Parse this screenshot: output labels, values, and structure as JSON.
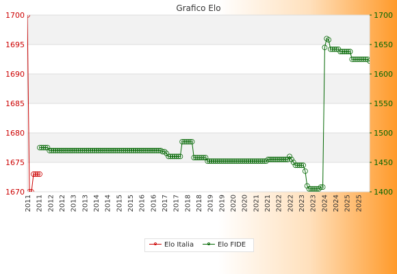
{
  "chart_data": {
    "type": "line",
    "title": "Grafico Elo",
    "y_left": {
      "ylim": [
        1670,
        1700
      ],
      "ticks": [
        1670,
        1675,
        1680,
        1685,
        1690,
        1695,
        1700
      ],
      "color": "#cc0000"
    },
    "y_right": {
      "ylim": [
        1400,
        1700
      ],
      "ticks": [
        1400,
        1450,
        1500,
        1550,
        1600,
        1650,
        1700
      ],
      "color": "#006600"
    },
    "x_tick_labels": [
      "2011",
      "2011",
      "2012",
      "2012",
      "2013",
      "2013",
      "2014",
      "2014",
      "2015",
      "2015",
      "2016",
      "2016",
      "2017",
      "2017",
      "2018",
      "2018",
      "2019",
      "2019",
      "2020",
      "2020",
      "2021",
      "2021",
      "2022",
      "2022",
      "2023",
      "2023",
      "2024",
      "2024",
      "2025",
      "2025"
    ],
    "legend": {
      "placement": "bottom-center"
    },
    "grid": "horizontal-bands",
    "series": [
      {
        "name": "Elo Italia",
        "axis": "left",
        "color": "#cc0000",
        "values": [
          1700,
          1670,
          1670,
          1673,
          1673,
          1673,
          1673
        ]
      },
      {
        "name": "Elo FIDE",
        "axis": "right",
        "color": "#006600",
        "values": [
          1475,
          1475,
          1475,
          1475,
          1475,
          1470,
          1470,
          1470,
          1470,
          1470,
          1470,
          1470,
          1470,
          1470,
          1470,
          1470,
          1470,
          1470,
          1470,
          1470,
          1470,
          1470,
          1470,
          1470,
          1470,
          1470,
          1470,
          1470,
          1470,
          1470,
          1470,
          1470,
          1470,
          1470,
          1470,
          1470,
          1470,
          1470,
          1470,
          1470,
          1470,
          1470,
          1470,
          1470,
          1470,
          1470,
          1470,
          1470,
          1470,
          1470,
          1470,
          1470,
          1470,
          1470,
          1470,
          1470,
          1470,
          1470,
          1470,
          1470,
          1470,
          1470,
          1470,
          1468,
          1468,
          1465,
          1460,
          1460,
          1460,
          1460,
          1460,
          1460,
          1460,
          1485,
          1485,
          1485,
          1485,
          1485,
          1485,
          1458,
          1458,
          1458,
          1458,
          1458,
          1458,
          1458,
          1452,
          1452,
          1452,
          1452,
          1452,
          1452,
          1452,
          1452,
          1452,
          1452,
          1452,
          1452,
          1452,
          1452,
          1452,
          1452,
          1452,
          1452,
          1452,
          1452,
          1452,
          1452,
          1452,
          1452,
          1452,
          1452,
          1452,
          1452,
          1452,
          1452,
          1452,
          1455,
          1455,
          1455,
          1455,
          1455,
          1455,
          1455,
          1455,
          1455,
          1455,
          1455,
          1460,
          1455,
          1450,
          1445,
          1445,
          1445,
          1445,
          1445,
          1435,
          1410,
          1405,
          1405,
          1405,
          1405,
          1405,
          1405,
          1408,
          1408,
          1645,
          1660,
          1658,
          1642,
          1642,
          1642,
          1642,
          1642,
          1638,
          1638,
          1638,
          1638,
          1638,
          1638,
          1625,
          1625,
          1625,
          1625,
          1625,
          1625,
          1625,
          1625,
          1625,
          1622
        ]
      }
    ]
  }
}
